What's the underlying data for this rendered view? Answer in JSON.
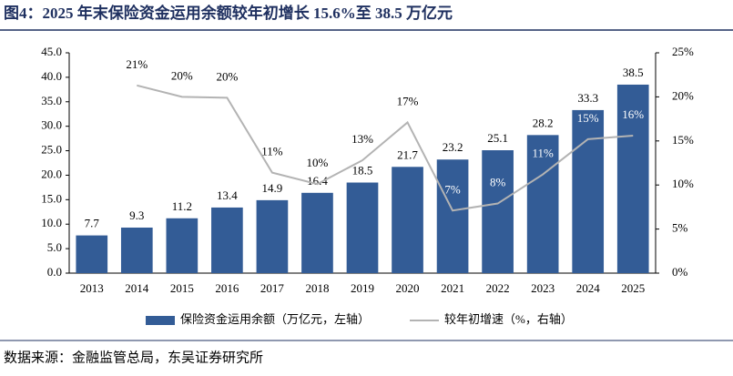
{
  "title": "图4：2025 年末保险资金运用余额较年初增长 15.6%至 38.5 万亿元",
  "source": "数据来源：金融监管总局，东吴证券研究所",
  "chart_data": {
    "type": "bar-line",
    "categories": [
      "2013",
      "2014",
      "2015",
      "2016",
      "2017",
      "2018",
      "2019",
      "2020",
      "2021",
      "2022",
      "2023",
      "2024",
      "2025"
    ],
    "series": [
      {
        "name": "保险资金运用余额（万亿元，左轴）",
        "type": "bar",
        "color": "#335c96",
        "values": [
          7.7,
          9.3,
          11.2,
          13.4,
          14.9,
          16.4,
          18.5,
          21.7,
          23.2,
          25.1,
          28.2,
          33.3,
          38.5
        ]
      },
      {
        "name": "较年初增速（%，右轴）",
        "type": "line",
        "axis": "y2",
        "color": "#b3b3b3",
        "values": [
          null,
          21.3,
          20.0,
          19.9,
          11.4,
          10.1,
          12.8,
          17.1,
          7.1,
          7.9,
          11.2,
          15.2,
          15.6
        ],
        "value_labels": [
          null,
          "21%",
          "20%",
          "20%",
          "11%",
          "10%",
          "13%",
          "17%",
          "7%",
          "8%",
          "11%",
          "15%",
          "16%"
        ]
      }
    ],
    "ylim": [
      0,
      45
    ],
    "yticks": [
      {
        "value": 0,
        "label": "0.0"
      },
      {
        "value": 5,
        "label": "5.0"
      },
      {
        "value": 10,
        "label": "10.0"
      },
      {
        "value": 15,
        "label": "15.0"
      },
      {
        "value": 20,
        "label": "20.0"
      },
      {
        "value": 25,
        "label": "25.0"
      },
      {
        "value": 30,
        "label": "30.0"
      },
      {
        "value": 35,
        "label": "35.0"
      },
      {
        "value": 40,
        "label": "40.0"
      },
      {
        "value": 45,
        "label": "45.0"
      }
    ],
    "y2lim": [
      0,
      25
    ],
    "y2ticks": [
      {
        "value": 0,
        "label": "0%"
      },
      {
        "value": 5,
        "label": "5%"
      },
      {
        "value": 10,
        "label": "10%"
      },
      {
        "value": 15,
        "label": "15%"
      },
      {
        "value": 20,
        "label": "20%"
      },
      {
        "value": 25,
        "label": "25%"
      }
    ],
    "legend": "bottom"
  }
}
